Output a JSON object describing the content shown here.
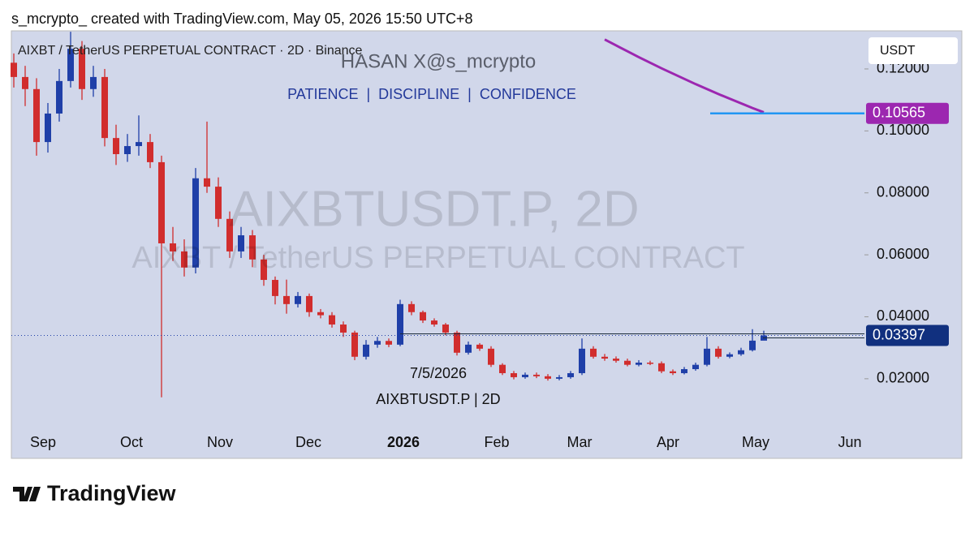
{
  "header": {
    "text": "s_mcrypto_ created with TradingView.com, May 05, 2026 15:50 UTC+8"
  },
  "footer": {
    "brand": "TradingView"
  },
  "chart_data": {
    "type": "candlestick",
    "symbol": "AIXBT / TetherUS PERPETUAL CONTRACT · 2D · Binance",
    "watermark": {
      "author": "HASAN X@s_mcrypto",
      "motto": "PATIENCE  |  DISCIPLINE  |  CONFIDENCE",
      "ticker": "AIXBTUSDT.P, 2D",
      "description": "AIXBT / TetherUS PERPETUAL CONTRACT"
    },
    "annotations": [
      "7/5/2026",
      "AIXBTUSDT.P | 2D"
    ],
    "currency_button": "USDT",
    "xtick_labels": [
      "Sep",
      "Oct",
      "Nov",
      "Dec",
      "2026",
      "Feb",
      "Mar",
      "Apr",
      "May",
      "Jun"
    ],
    "open": [
      0.122,
      0.1174,
      0.1135,
      0.0964,
      0.1056,
      0.1161,
      0.1265,
      0.1135,
      0.1174,
      0.0977,
      0.0925,
      0.0951,
      0.0964,
      0.0899,
      0.0637,
      0.0611,
      0.0559,
      0.0847,
      0.082,
      0.0716,
      0.0611,
      0.0663,
      0.0585,
      0.0519,
      0.0467,
      0.0441,
      0.0467,
      0.0415,
      0.0405,
      0.0375,
      0.0349,
      0.0271,
      0.031,
      0.0322,
      0.031,
      0.0441,
      0.0415,
      0.0388,
      0.0375,
      0.0349,
      0.0284,
      0.031,
      0.0297,
      0.0245,
      0.0218,
      0.0205,
      0.0213,
      0.0208,
      0.02,
      0.0205,
      0.0218,
      0.0297,
      0.0271,
      0.0265,
      0.0258,
      0.0245,
      0.0252,
      0.025,
      0.0224,
      0.0218,
      0.0231,
      0.0245,
      0.0297,
      0.0271,
      0.0279,
      0.0292,
      0.0323
    ],
    "high": [
      0.125,
      0.121,
      0.117,
      0.109,
      0.12,
      0.132,
      0.129,
      0.121,
      0.12,
      0.102,
      0.099,
      0.105,
      0.099,
      0.092,
      0.069,
      0.065,
      0.088,
      0.103,
      0.085,
      0.074,
      0.069,
      0.068,
      0.06,
      0.053,
      0.052,
      0.048,
      0.0475,
      0.0425,
      0.0415,
      0.0385,
      0.0355,
      0.0325,
      0.0335,
      0.033,
      0.0455,
      0.045,
      0.042,
      0.0395,
      0.038,
      0.0355,
      0.032,
      0.0315,
      0.0305,
      0.025,
      0.0225,
      0.022,
      0.022,
      0.0215,
      0.0212,
      0.0225,
      0.033,
      0.0305,
      0.028,
      0.0272,
      0.0265,
      0.026,
      0.0258,
      0.0256,
      0.023,
      0.0238,
      0.0252,
      0.0335,
      0.0305,
      0.0285,
      0.03,
      0.036,
      0.0355
    ],
    "low": [
      0.114,
      0.108,
      0.092,
      0.093,
      0.103,
      0.114,
      0.11,
      0.111,
      0.095,
      0.089,
      0.09,
      0.092,
      0.088,
      0.014,
      0.058,
      0.053,
      0.054,
      0.08,
      0.069,
      0.059,
      0.059,
      0.056,
      0.05,
      0.044,
      0.041,
      0.043,
      0.04,
      0.0395,
      0.0365,
      0.0335,
      0.026,
      0.0262,
      0.03,
      0.0302,
      0.0305,
      0.0405,
      0.038,
      0.0368,
      0.034,
      0.0275,
      0.0278,
      0.029,
      0.0238,
      0.0212,
      0.0198,
      0.02,
      0.0202,
      0.0194,
      0.0195,
      0.02,
      0.0212,
      0.0265,
      0.0258,
      0.0252,
      0.024,
      0.024,
      0.0244,
      0.0218,
      0.0212,
      0.0214,
      0.0226,
      0.024,
      0.0265,
      0.0266,
      0.0274,
      0.0288,
      0.0333
    ],
    "close": [
      0.1174,
      0.1135,
      0.0964,
      0.1056,
      0.1161,
      0.1265,
      0.1135,
      0.1174,
      0.0977,
      0.0925,
      0.0951,
      0.0964,
      0.0899,
      0.0637,
      0.0611,
      0.0559,
      0.0847,
      0.082,
      0.0716,
      0.0611,
      0.0663,
      0.0585,
      0.0519,
      0.0467,
      0.0441,
      0.0467,
      0.0415,
      0.0405,
      0.0375,
      0.0349,
      0.0271,
      0.031,
      0.0322,
      0.031,
      0.0441,
      0.0415,
      0.0388,
      0.0375,
      0.0349,
      0.0284,
      0.031,
      0.0297,
      0.0245,
      0.0218,
      0.0205,
      0.0213,
      0.0208,
      0.02,
      0.0205,
      0.0218,
      0.0297,
      0.0271,
      0.0265,
      0.0258,
      0.0245,
      0.0252,
      0.025,
      0.0224,
      0.0218,
      0.0231,
      0.0245,
      0.0297,
      0.0271,
      0.0279,
      0.0292,
      0.0323,
      0.03397
    ],
    "ma": {
      "color": "#9c27b0",
      "values": [
        null,
        null,
        null,
        null,
        null,
        null,
        null,
        null,
        null,
        null,
        null,
        null,
        null,
        null,
        null,
        null,
        null,
        null,
        null,
        null,
        null,
        null,
        null,
        null,
        null,
        null,
        null,
        null,
        null,
        null,
        null,
        null,
        null,
        null,
        null,
        null,
        null,
        null,
        null,
        null,
        null,
        null,
        null,
        null,
        null,
        null,
        null,
        null,
        null,
        null,
        null,
        null,
        0.1295,
        0.1276,
        0.1257,
        0.1238,
        0.122,
        0.1202,
        0.1185,
        0.1168,
        0.1151,
        0.1135,
        0.1119,
        0.1104,
        0.1089,
        0.1074,
        0.106
      ]
    },
    "price_line": {
      "value": 0.10565,
      "color": "#2196f3"
    },
    "up_color": "#1f3fa8",
    "down_color": "#d12d2d",
    "ylim": [
      -0.0057,
      0.1323
    ],
    "yticks": [
      {
        "value": 0.12,
        "label": "0.12000"
      },
      {
        "value": 0.1,
        "label": "0.10000"
      },
      {
        "value": 0.08,
        "label": "0.08000"
      },
      {
        "value": 0.06,
        "label": "0.06000"
      },
      {
        "value": 0.04,
        "label": "0.04000"
      },
      {
        "value": 0.02,
        "label": "0.02000"
      }
    ]
  }
}
